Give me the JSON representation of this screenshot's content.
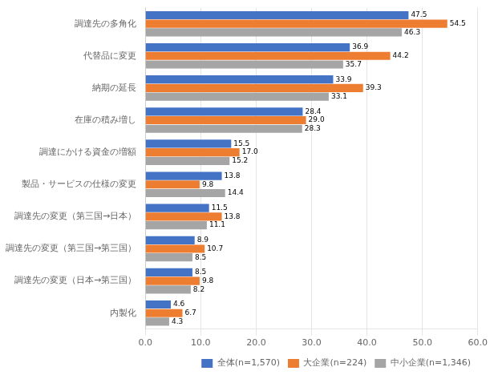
{
  "chart_data": {
    "type": "bar",
    "orientation": "horizontal",
    "categories": [
      "調達先の多角化",
      "代替品に変更",
      "納期の延長",
      "在庫の積み増し",
      "調達にかける資金の増額",
      "製品・サービスの仕様の変更",
      "調達先の変更（第三国→日本）",
      "調達先の変更（第三国→第三国）",
      "調達先の変更（日本→第三国）",
      "内製化"
    ],
    "series": [
      {
        "name": "全体(n=1,570)",
        "color": "#4472C4",
        "values": [
          47.5,
          36.9,
          33.9,
          28.4,
          15.5,
          13.8,
          11.5,
          8.9,
          8.5,
          4.6
        ]
      },
      {
        "name": "大企業(n=224)",
        "color": "#ED7D31",
        "values": [
          54.5,
          44.2,
          39.3,
          29.0,
          17.0,
          9.8,
          13.8,
          10.7,
          9.8,
          6.7
        ],
        "value_labels": [
          "54.5",
          "44.2",
          "39.3",
          "29.0",
          "17.0",
          "9.8",
          "13.8",
          "10.7",
          "9.8",
          "6.7"
        ]
      },
      {
        "name": "中小企業(n=1,346)",
        "color": "#A5A5A5",
        "values": [
          46.3,
          35.7,
          33.1,
          28.3,
          15.2,
          14.4,
          11.1,
          8.5,
          8.2,
          4.3
        ]
      }
    ],
    "xlim": [
      0,
      60
    ],
    "xticks": [
      {
        "value": 0,
        "label": "0.0"
      },
      {
        "value": 10,
        "label": "10.0"
      },
      {
        "value": 20,
        "label": "20.0"
      },
      {
        "value": 30,
        "label": "30.0"
      },
      {
        "value": 40,
        "label": "40.0"
      },
      {
        "value": 50,
        "label": "50.0"
      },
      {
        "value": 60,
        "label": "60.0"
      }
    ],
    "grid": true,
    "legend": "lower right",
    "data_labels": true
  }
}
